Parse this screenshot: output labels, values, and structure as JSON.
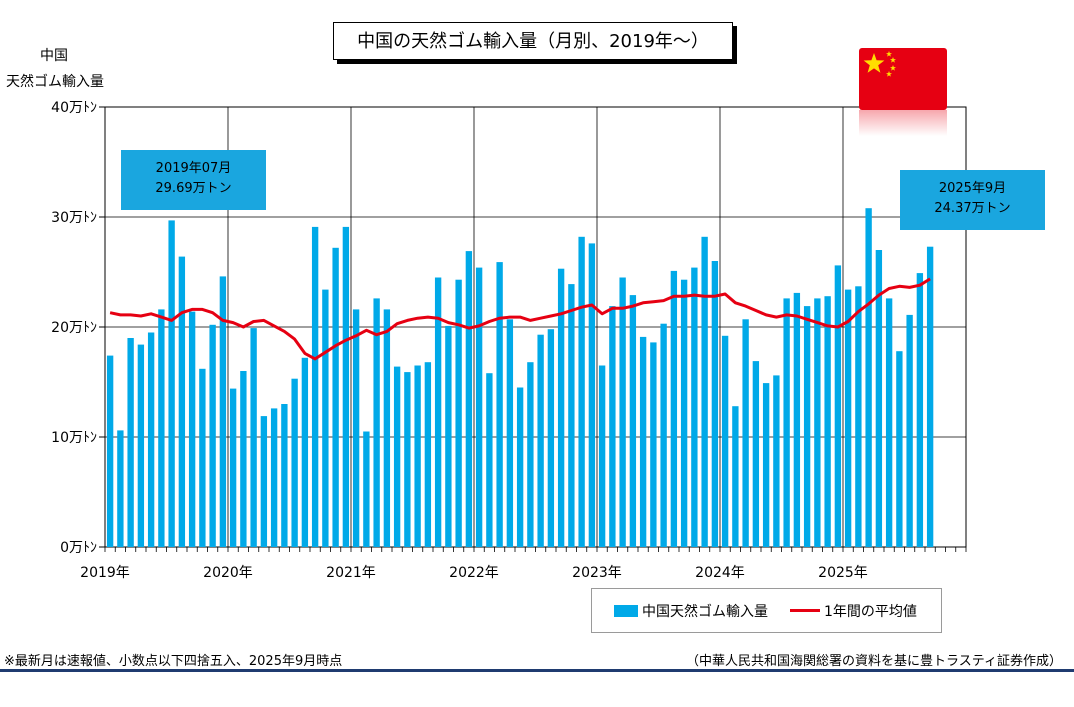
{
  "title": "中国の天然ゴム輸入量（月別、2019年～）",
  "ylabel_line1": "中国",
  "ylabel_line2": "天然ゴム輸入量",
  "colors": {
    "bars": "#00a9e8",
    "avg_line": "#e60012",
    "callout": "#1aa6df",
    "grid": "#000000",
    "rule": "#1f3b70"
  },
  "flag": {
    "icon": "china-flag",
    "red": "#e60012",
    "star": "#ffde00"
  },
  "callouts": [
    {
      "line1": "2019年07月",
      "line2": "29.69万トン"
    },
    {
      "line1": "2025年9月",
      "line2": "24.37万トン"
    }
  ],
  "legend": {
    "bars_label": "中国天然ゴム輸入量",
    "line_label": "1年間の平均値",
    "position": "bottom-right"
  },
  "footnote": "※最新月は速報値、小数点以下四捨五入、2025年9月時点",
  "source": "（中華人民共和国海関総署の資料を基に豊トラスティ証券作成）",
  "chart_data": {
    "type": "bar",
    "title": "中国の天然ゴム輸入量（月別、2019年～）",
    "ylabel": "中国 天然ゴム輸入量",
    "xlabel": "",
    "ylim": [
      0,
      40
    ],
    "y_ticks": [
      0,
      10,
      20,
      30,
      40
    ],
    "y_tick_labels": [
      "0万ﾄﾝ",
      "10万ﾄﾝ",
      "20万ﾄﾝ",
      "30万ﾄﾝ",
      "40万ﾄﾝ"
    ],
    "x_tick_labels": [
      "2019年",
      "2020年",
      "2021年",
      "2022年",
      "2023年",
      "2024年",
      "2025年"
    ],
    "x_range_months": [
      "2019-01",
      "2025-12"
    ],
    "grid": true,
    "months_start": "2019-01",
    "series": [
      {
        "name": "中国天然ゴム輸入量",
        "type": "bar",
        "values": [
          17.4,
          10.6,
          19.0,
          18.4,
          19.5,
          21.6,
          29.69,
          26.4,
          21.4,
          16.2,
          20.2,
          24.6,
          14.4,
          16.0,
          19.9,
          11.9,
          12.6,
          13.0,
          15.3,
          17.2,
          29.1,
          23.4,
          27.2,
          29.1,
          21.6,
          10.5,
          22.6,
          21.6,
          16.4,
          15.9,
          16.5,
          16.8,
          24.5,
          20.1,
          24.3,
          26.9,
          25.4,
          15.8,
          25.9,
          20.7,
          14.5,
          16.8,
          19.3,
          19.8,
          25.3,
          23.9,
          28.2,
          27.6,
          16.5,
          21.9,
          24.5,
          22.9,
          19.1,
          18.6,
          20.3,
          25.1,
          24.3,
          25.4,
          28.2,
          26.0,
          19.2,
          12.8,
          20.7,
          16.9,
          14.9,
          15.6,
          22.6,
          23.1,
          21.9,
          22.6,
          22.8,
          25.6,
          23.4,
          23.7,
          30.8,
          27.0,
          22.6,
          17.8,
          21.1,
          24.9,
          27.3
        ]
      },
      {
        "name": "1年間の平均値",
        "type": "line",
        "values": [
          21.3,
          21.1,
          21.1,
          21.0,
          21.2,
          20.9,
          20.6,
          21.3,
          21.6,
          21.6,
          21.3,
          20.6,
          20.4,
          20.0,
          20.5,
          20.6,
          20.1,
          19.6,
          18.9,
          17.6,
          17.1,
          17.7,
          18.3,
          18.8,
          19.2,
          19.7,
          19.3,
          19.6,
          20.3,
          20.6,
          20.8,
          20.9,
          20.8,
          20.4,
          20.2,
          19.9,
          20.1,
          20.5,
          20.8,
          20.9,
          20.9,
          20.6,
          20.8,
          21.0,
          21.2,
          21.5,
          21.8,
          22.0,
          21.2,
          21.7,
          21.7,
          21.9,
          22.2,
          22.3,
          22.4,
          22.8,
          22.8,
          22.9,
          22.8,
          22.8,
          23.0,
          22.2,
          21.9,
          21.5,
          21.1,
          20.9,
          21.1,
          21.0,
          20.7,
          20.4,
          20.1,
          20.0,
          20.5,
          21.4,
          22.1,
          22.9,
          23.5,
          23.7,
          23.6,
          23.8,
          24.37
        ]
      }
    ]
  }
}
